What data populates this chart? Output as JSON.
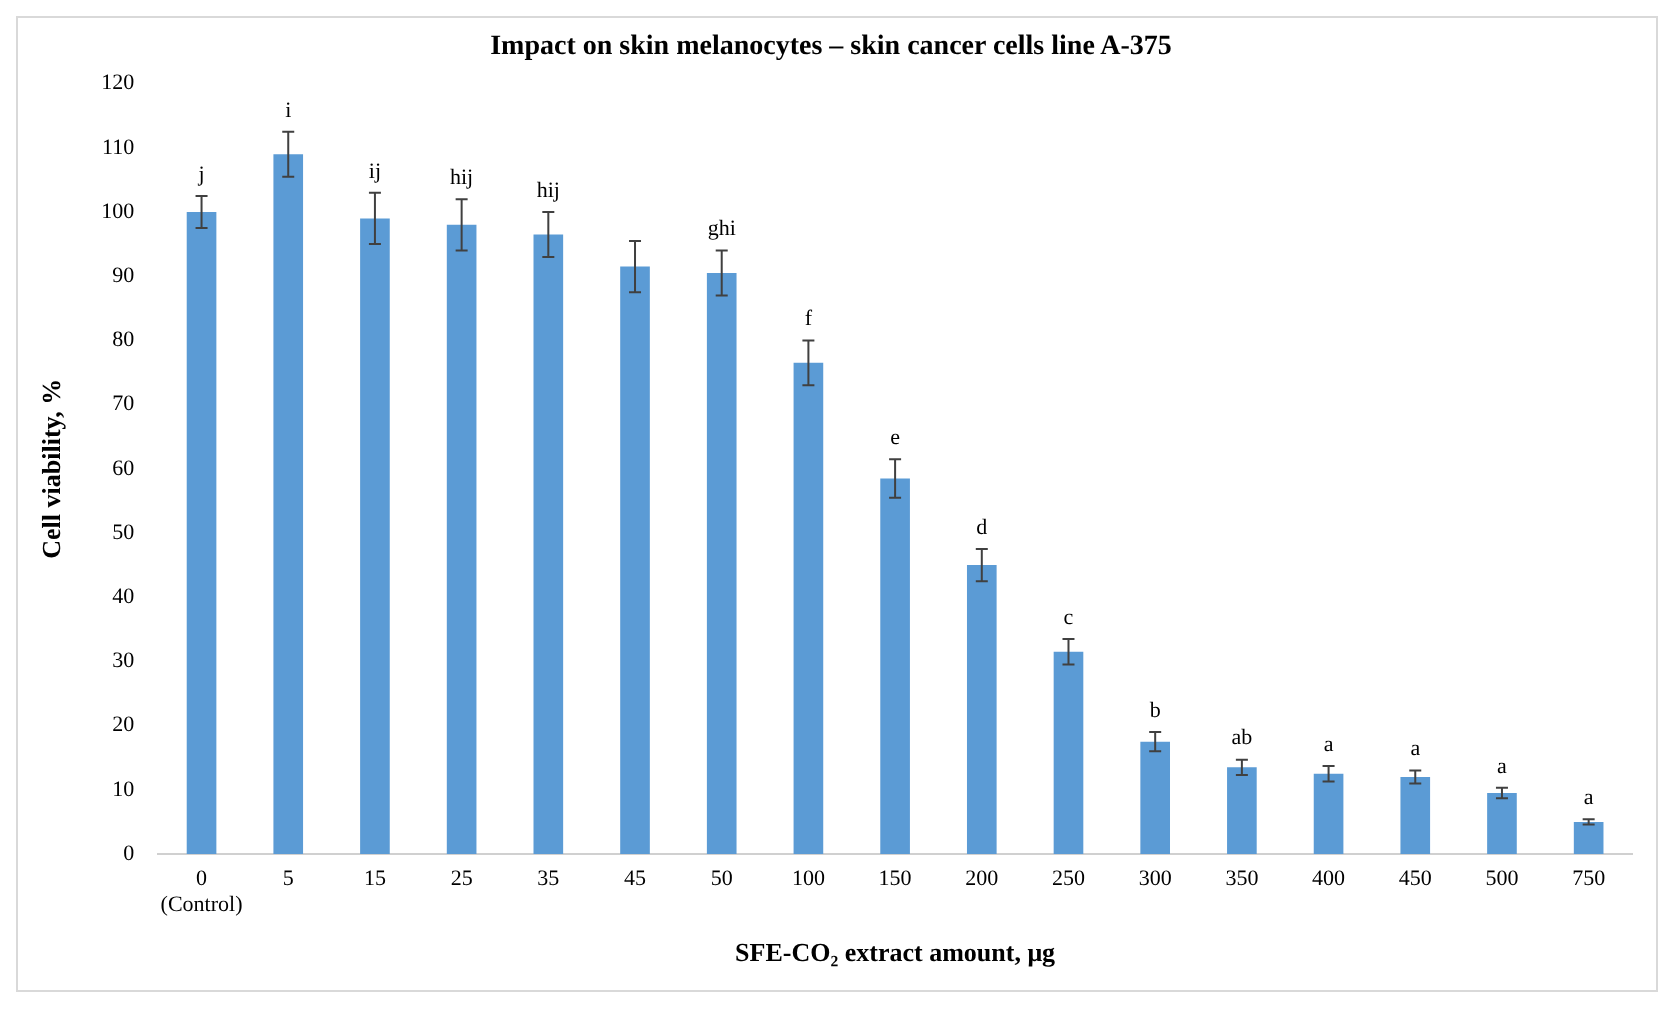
{
  "chart_data": {
    "type": "bar",
    "title": "Impact on skin melanocytes – skin cancer cells line A-375",
    "xlabel": "SFE-CO₂ extract amount, μg",
    "ylabel": "Cell viability, %",
    "categories": [
      "0\n(Control)",
      "5",
      "15",
      "25",
      "35",
      "45",
      "50",
      "100",
      "150",
      "200",
      "250",
      "300",
      "350",
      "400",
      "450",
      "500",
      "750"
    ],
    "values": [
      100,
      109,
      99,
      98,
      96.5,
      91.5,
      90.5,
      76.5,
      58.5,
      45,
      31.5,
      17.5,
      13.5,
      12.5,
      12,
      9.5,
      5
    ],
    "errors": [
      2.5,
      3.5,
      4,
      4,
      3.5,
      4,
      3.5,
      3.5,
      3,
      2.5,
      2,
      1.5,
      1.2,
      1.2,
      1,
      0.8,
      0.4
    ],
    "value_labels": [
      "j",
      "i",
      "ij",
      "hij",
      "hij",
      null,
      "ghi",
      "f",
      "e",
      "d",
      "c",
      "b",
      "ab",
      "a",
      "a",
      "a",
      "a"
    ],
    "color": "#5b9bd5",
    "ylim": [
      0,
      120
    ],
    "yticks": [
      0,
      10,
      20,
      30,
      40,
      50,
      60,
      70,
      80,
      90,
      100,
      110,
      120
    ],
    "grid": false,
    "legend": false
  }
}
